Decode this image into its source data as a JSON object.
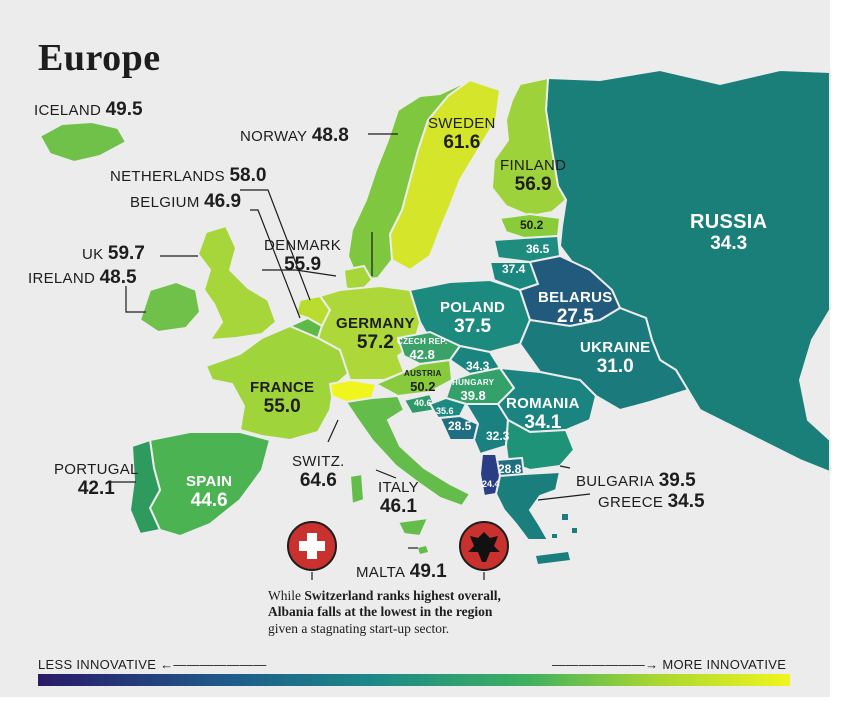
{
  "title": "Europe",
  "countries": {
    "iceland": {
      "name": "ICELAND",
      "value": "49.5"
    },
    "norway": {
      "name": "NORWAY",
      "value": "48.8"
    },
    "sweden": {
      "name": "SWEDEN",
      "value": "61.6"
    },
    "finland": {
      "name": "FINLAND",
      "value": "56.9"
    },
    "russia": {
      "name": "RUSSIA",
      "value": "34.3"
    },
    "netherlands": {
      "name": "NETHERLANDS",
      "value": "58.0"
    },
    "belgium": {
      "name": "BELGIUM",
      "value": "46.9"
    },
    "denmark": {
      "name": "DENMARK",
      "value": "55.9"
    },
    "uk": {
      "name": "UK",
      "value": "59.7"
    },
    "ireland": {
      "name": "IRELAND",
      "value": "48.5"
    },
    "estonia": {
      "value": "50.2"
    },
    "latvia": {
      "value": "36.5"
    },
    "lithuania": {
      "value": "37.4"
    },
    "poland": {
      "name": "POLAND",
      "value": "37.5"
    },
    "belarus": {
      "name": "BELARUS",
      "value": "27.5"
    },
    "germany": {
      "name": "GERMANY",
      "value": "57.2"
    },
    "czech": {
      "name": "CZECH REP.",
      "value": "42.8"
    },
    "slovakia": {
      "value": "34.3"
    },
    "ukraine": {
      "name": "UKRAINE",
      "value": "31.0"
    },
    "austria": {
      "name": "AUSTRIA",
      "value": "50.2"
    },
    "hungary": {
      "name": "HUNGARY",
      "value": "39.8"
    },
    "france": {
      "name": "FRANCE",
      "value": "55.0"
    },
    "slovenia": {
      "value": "40.6"
    },
    "croatia": {
      "value": "35.6"
    },
    "bosnia": {
      "value": "28.5"
    },
    "serbia": {
      "value": "32.3"
    },
    "romania": {
      "name": "ROMANIA",
      "value": "34.1"
    },
    "north_macedonia": {
      "value": "28.8"
    },
    "albania": {
      "value": "24.4"
    },
    "portugal": {
      "name": "PORTUGAL",
      "value": "42.1"
    },
    "spain": {
      "name": "SPAIN",
      "value": "44.6"
    },
    "switzerland": {
      "name": "SWITZ.",
      "value": "64.6"
    },
    "italy": {
      "name": "ITALY",
      "value": "46.1"
    },
    "bulgaria": {
      "name": "BULGARIA",
      "value": "39.5"
    },
    "greece": {
      "name": "GREECE",
      "value": "34.5"
    },
    "malta": {
      "name": "MALTA",
      "value": "49.1"
    }
  },
  "note": {
    "line1_prefix": "While",
    "line1_bold": "Switzerland ranks highest overall,",
    "line2": "Albania falls at the lowest in the region",
    "line3": "given a stagnating start-up sector."
  },
  "legend": {
    "less": "LESS INNOVATIVE",
    "more": "MORE INNOVATIVE",
    "colors": [
      "#2a1a68",
      "#1f5a8a",
      "#1b8a88",
      "#3fb060",
      "#a8d632",
      "#f0f51e"
    ]
  },
  "fill_colors": {
    "highest": "#f0f51e",
    "high": "#c8e12c",
    "upper_mid": "#9ed23a",
    "mid": "#5fba4a",
    "lower_mid": "#2e9a60",
    "low": "#1a7f78",
    "lowest": "#1f5578",
    "flag_red": "#c8312d"
  },
  "icons": [
    "swiss-flag-icon",
    "albanian-flag-icon"
  ]
}
